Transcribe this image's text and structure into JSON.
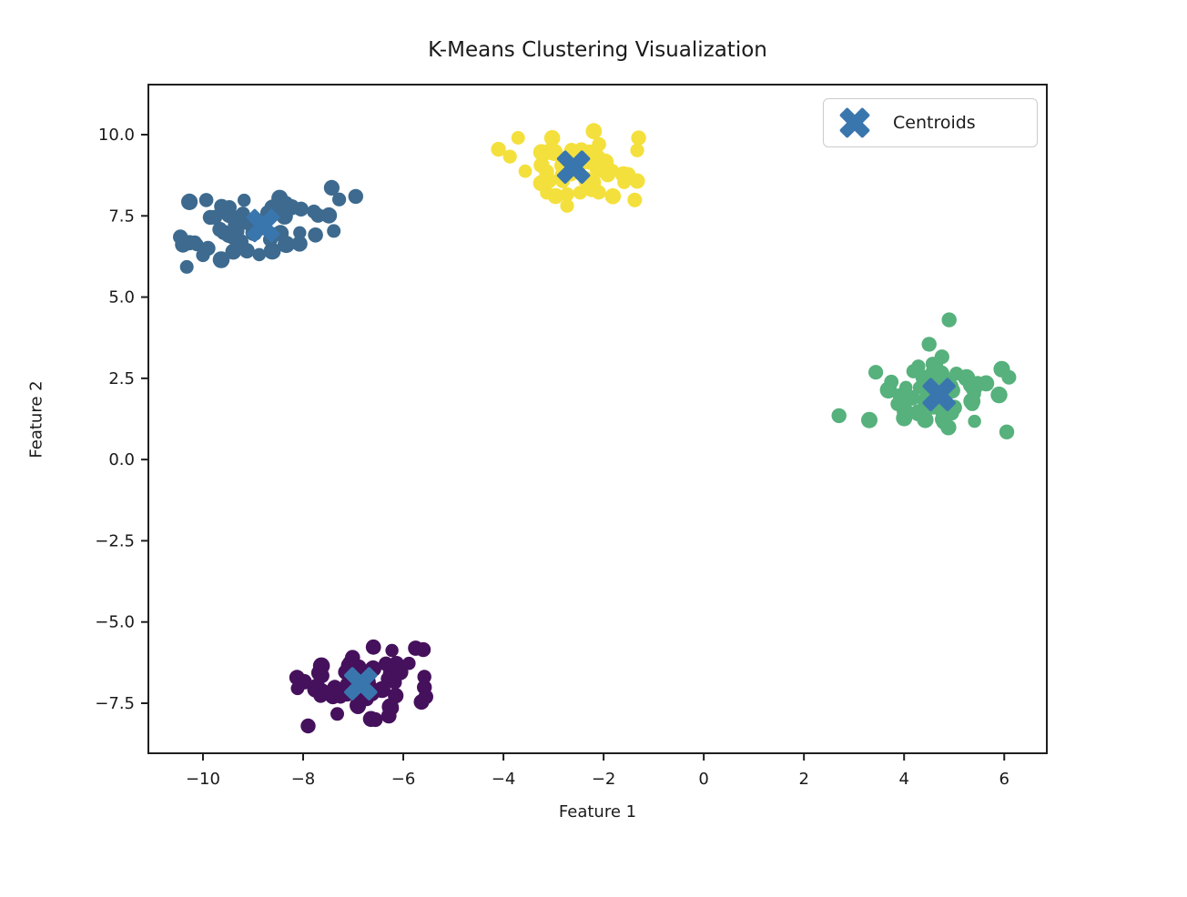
{
  "figure": {
    "title": "K-Means Clustering Visualization",
    "xlabel": "Feature 1",
    "ylabel": "Feature 2",
    "background_color": "#ffffff",
    "spine_color": "#1f1f1f",
    "tick_text_color": "#1a1a1a"
  },
  "legend": {
    "label": "Centroids",
    "marker": "X",
    "marker_color": "#3a76ae",
    "position": "upper right"
  },
  "chart_data": {
    "type": "scatter",
    "title": "K-Means Clustering Visualization",
    "xlabel": "Feature 1",
    "ylabel": "Feature 2",
    "xlim": [
      -11.09,
      6.85
    ],
    "ylim": [
      -9.04,
      11.54
    ],
    "grid": false,
    "legend_position": "upper right",
    "x_ticks": [
      {
        "value": -10,
        "label": "−10"
      },
      {
        "value": -8,
        "label": "−8"
      },
      {
        "value": -6,
        "label": "−6"
      },
      {
        "value": -4,
        "label": "−4"
      },
      {
        "value": -2,
        "label": "−2"
      },
      {
        "value": 0,
        "label": "0"
      },
      {
        "value": 2,
        "label": "2"
      },
      {
        "value": 4,
        "label": "4"
      },
      {
        "value": 6,
        "label": "6"
      }
    ],
    "y_ticks": [
      {
        "value": 10.0,
        "label": "10.0"
      },
      {
        "value": 7.5,
        "label": "7.5"
      },
      {
        "value": 5.0,
        "label": "5.0"
      },
      {
        "value": 2.5,
        "label": "2.5"
      },
      {
        "value": 0.0,
        "label": "0.0"
      },
      {
        "value": -2.5,
        "label": "−2.5"
      },
      {
        "value": -5.0,
        "label": "−5.0"
      },
      {
        "value": -7.5,
        "label": "−7.5"
      }
    ],
    "clusters": [
      {
        "name": "cluster-0",
        "color": "#3d6a8e",
        "center": [
          -8.8,
          7.2
        ],
        "std": [
          0.78,
          0.62
        ],
        "count": 60,
        "seed": 101,
        "extra_points": [
          [
            -6.95,
            8.1
          ],
          [
            -10.45,
            6.85
          ],
          [
            -9.9,
            6.5
          ]
        ]
      },
      {
        "name": "cluster-1",
        "color": "#f4e03c",
        "center": [
          -2.6,
          9.0
        ],
        "std": [
          0.62,
          0.58
        ],
        "count": 60,
        "seed": 202,
        "extra_points": [
          [
            -4.1,
            9.55
          ],
          [
            -1.3,
            9.9
          ]
        ]
      },
      {
        "name": "cluster-2",
        "color": "#56b17c",
        "center": [
          4.7,
          2.0
        ],
        "std": [
          0.68,
          0.58
        ],
        "count": 60,
        "seed": 303,
        "extra_points": [
          [
            2.7,
            1.35
          ],
          [
            4.9,
            4.3
          ],
          [
            4.5,
            3.55
          ],
          [
            6.05,
            0.85
          ]
        ]
      },
      {
        "name": "cluster-3",
        "color": "#45115c",
        "center": [
          -6.85,
          -6.9
        ],
        "std": [
          0.62,
          0.55
        ],
        "count": 60,
        "seed": 404,
        "extra_points": [
          [
            -5.6,
            -5.85
          ],
          [
            -5.55,
            -7.3
          ],
          [
            -7.9,
            -8.2
          ]
        ]
      }
    ],
    "centroids": {
      "marker": "X",
      "color": "#3a76ae",
      "points": [
        [
          -8.8,
          7.2
        ],
        [
          -2.6,
          9.0
        ],
        [
          4.7,
          2.0
        ],
        [
          -6.85,
          -6.9
        ]
      ]
    }
  }
}
